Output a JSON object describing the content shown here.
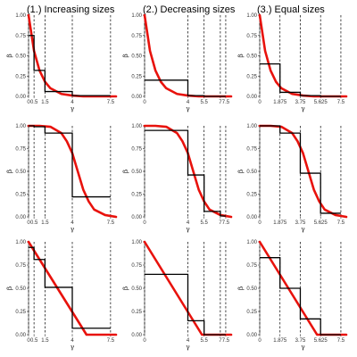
{
  "figure": {
    "column_titles": [
      "(1.) Increasing sizes",
      "(2.) Decreasing sizes",
      "(3.) Equal sizes"
    ],
    "xlabel": "γ",
    "ylabel": "β",
    "y_ticks": [
      0,
      0.25,
      0.5,
      0.75,
      1
    ],
    "y_tick_labels": [
      "0.00",
      "0.25",
      "0.50",
      "0.75",
      "1.00"
    ],
    "colors": {
      "curve": "#e8120c",
      "step": "#000000",
      "dashed": "#000000"
    }
  },
  "chart_data": [
    {
      "type": "line",
      "row": 1,
      "col": 1,
      "curve": "exponential",
      "xlim": [
        0,
        8
      ],
      "ylim": [
        0,
        1
      ],
      "x_ticks": [
        0,
        0.5,
        1.5,
        4,
        7.5
      ],
      "x_tick_labels": [
        "0",
        "0.5",
        "1.5",
        "4",
        "7.5"
      ],
      "breaks": [
        0,
        0.5,
        1.5,
        4,
        7.5
      ],
      "step_values": [
        0.75,
        0.32,
        0.06,
        0.01
      ],
      "series": [
        {
          "x": [
            0,
            0.5,
            1,
            1.5,
            2,
            3,
            4,
            5,
            6,
            7.5,
            8
          ],
          "y": [
            1,
            0.56,
            0.32,
            0.18,
            0.1,
            0.03,
            0.01,
            0.0,
            0.0,
            0.0,
            0.0
          ]
        }
      ]
    },
    {
      "type": "line",
      "row": 1,
      "col": 2,
      "curve": "exponential",
      "xlim": [
        0,
        8
      ],
      "ylim": [
        0,
        1
      ],
      "x_ticks": [
        0,
        4,
        5.5,
        7,
        7.5
      ],
      "x_tick_labels": [
        "0",
        "4",
        "5.5",
        "7",
        "7.5"
      ],
      "breaks": [
        0,
        4,
        5.5,
        7,
        7.5
      ],
      "step_values": [
        0.2,
        0.01,
        0.0,
        0.0
      ],
      "series": [
        {
          "x": [
            0,
            0.5,
            1,
            1.5,
            2,
            3,
            4,
            5,
            6,
            7.5,
            8
          ],
          "y": [
            1,
            0.56,
            0.32,
            0.18,
            0.1,
            0.03,
            0.01,
            0.0,
            0.0,
            0.0,
            0.0
          ]
        }
      ]
    },
    {
      "type": "line",
      "row": 1,
      "col": 3,
      "curve": "exponential",
      "xlim": [
        0,
        8
      ],
      "ylim": [
        0,
        1
      ],
      "x_ticks": [
        0,
        1.875,
        3.75,
        5.625,
        7.5
      ],
      "x_tick_labels": [
        "0",
        "1.875",
        "3.75",
        "5.625",
        "7.5"
      ],
      "breaks": [
        0,
        1.875,
        3.75,
        5.625,
        7.5
      ],
      "step_values": [
        0.4,
        0.05,
        0.01,
        0.0
      ],
      "series": [
        {
          "x": [
            0,
            0.5,
            1,
            1.5,
            2,
            3,
            4,
            5,
            6,
            7.5,
            8
          ],
          "y": [
            1,
            0.56,
            0.32,
            0.18,
            0.1,
            0.03,
            0.01,
            0.0,
            0.0,
            0.0,
            0.0
          ]
        }
      ]
    },
    {
      "type": "line",
      "row": 2,
      "col": 1,
      "curve": "sigmoid",
      "xlim": [
        0,
        8
      ],
      "ylim": [
        0,
        1
      ],
      "x_ticks": [
        0,
        0.5,
        1.5,
        4,
        7.5
      ],
      "x_tick_labels": [
        "0",
        "0.5",
        "1.5",
        "4",
        "7.5"
      ],
      "breaks": [
        0,
        0.5,
        1.5,
        4,
        7.5
      ],
      "step_values": [
        1.0,
        0.99,
        0.92,
        0.22
      ],
      "series": [
        {
          "x": [
            0,
            1,
            2,
            3,
            3.5,
            4,
            4.5,
            5,
            5.5,
            6,
            7,
            8
          ],
          "y": [
            1,
            1,
            0.99,
            0.92,
            0.83,
            0.7,
            0.5,
            0.3,
            0.17,
            0.08,
            0.02,
            0.0
          ]
        }
      ]
    },
    {
      "type": "line",
      "row": 2,
      "col": 2,
      "curve": "sigmoid",
      "xlim": [
        0,
        8
      ],
      "ylim": [
        0,
        1
      ],
      "x_ticks": [
        0,
        4,
        5.5,
        7,
        7.5
      ],
      "x_tick_labels": [
        "0",
        "4",
        "5.5",
        "7",
        "7.5"
      ],
      "breaks": [
        0,
        4,
        5.5,
        7,
        7.5
      ],
      "step_values": [
        0.95,
        0.46,
        0.06,
        0.01
      ],
      "series": [
        {
          "x": [
            0,
            1,
            2,
            3,
            3.5,
            4,
            4.5,
            5,
            5.5,
            6,
            7,
            8
          ],
          "y": [
            1,
            1,
            0.99,
            0.92,
            0.83,
            0.7,
            0.5,
            0.3,
            0.17,
            0.08,
            0.02,
            0.0
          ]
        }
      ]
    },
    {
      "type": "line",
      "row": 2,
      "col": 3,
      "curve": "sigmoid",
      "xlim": [
        0,
        8
      ],
      "ylim": [
        0,
        1
      ],
      "x_ticks": [
        0,
        1.875,
        3.75,
        5.625,
        7.5
      ],
      "x_tick_labels": [
        "0",
        "1.875",
        "3.75",
        "5.625",
        "7.5"
      ],
      "breaks": [
        0,
        1.875,
        3.75,
        5.625,
        7.5
      ],
      "step_values": [
        1.0,
        0.92,
        0.48,
        0.04
      ],
      "series": [
        {
          "x": [
            0,
            1,
            2,
            3,
            3.5,
            4,
            4.5,
            5,
            5.5,
            6,
            7,
            8
          ],
          "y": [
            1,
            1,
            0.99,
            0.92,
            0.83,
            0.7,
            0.5,
            0.3,
            0.17,
            0.08,
            0.02,
            0.0
          ]
        }
      ]
    },
    {
      "type": "line",
      "row": 3,
      "col": 1,
      "curve": "linear",
      "xlim": [
        0,
        8
      ],
      "ylim": [
        0,
        1
      ],
      "x_ticks": [
        0,
        0.5,
        1.5,
        4,
        7.5
      ],
      "x_tick_labels": [
        "0",
        "0.5",
        "1.5",
        "4",
        "7.5"
      ],
      "breaks": [
        0,
        0.5,
        1.5,
        4,
        7.5
      ],
      "step_values": [
        0.94,
        0.81,
        0.51,
        0.07
      ],
      "series": [
        {
          "x": [
            0,
            5.3,
            8
          ],
          "y": [
            1,
            0,
            0
          ]
        }
      ]
    },
    {
      "type": "line",
      "row": 3,
      "col": 2,
      "curve": "linear",
      "xlim": [
        0,
        8
      ],
      "ylim": [
        0,
        1
      ],
      "x_ticks": [
        0,
        4,
        5.5,
        7,
        7.5
      ],
      "x_tick_labels": [
        "0",
        "4",
        "5.5",
        "7",
        "7.5"
      ],
      "breaks": [
        0,
        4,
        5.5,
        7,
        7.5
      ],
      "step_values": [
        0.65,
        0.15,
        0.0,
        0.0
      ],
      "series": [
        {
          "x": [
            0,
            5.3,
            8
          ],
          "y": [
            1,
            0,
            0
          ]
        }
      ]
    },
    {
      "type": "line",
      "row": 3,
      "col": 3,
      "curve": "linear",
      "xlim": [
        0,
        8
      ],
      "ylim": [
        0,
        1
      ],
      "x_ticks": [
        0,
        1.875,
        3.75,
        5.625,
        7.5
      ],
      "x_tick_labels": [
        "0",
        "1.875",
        "3.75",
        "5.625",
        "7.5"
      ],
      "breaks": [
        0,
        1.875,
        3.75,
        5.625,
        7.5
      ],
      "step_values": [
        0.83,
        0.5,
        0.17,
        0.0
      ],
      "series": [
        {
          "x": [
            0,
            5.3,
            8
          ],
          "y": [
            1,
            0,
            0
          ]
        }
      ]
    }
  ]
}
